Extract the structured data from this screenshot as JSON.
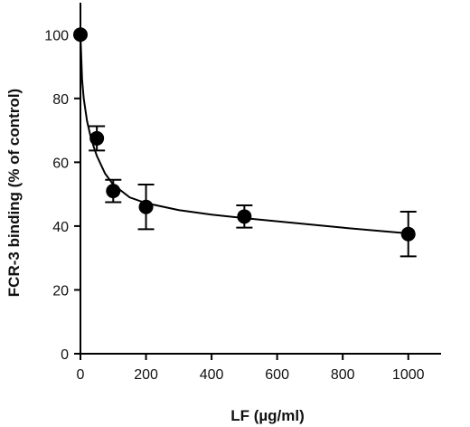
{
  "chart_data": {
    "type": "scatter",
    "title": "",
    "xlabel": "LF (µg/ml)",
    "ylabel": "FCR-3 binding (% of control)",
    "xlim": [
      0,
      1100
    ],
    "ylim": [
      0,
      110
    ],
    "xticks": [
      0,
      200,
      400,
      600,
      800,
      1000
    ],
    "yticks": [
      0,
      20,
      40,
      60,
      80,
      100
    ],
    "xtick_labels": [
      "0",
      "200",
      "400",
      "600",
      "800",
      "1000"
    ],
    "ytick_labels": [
      "0",
      "20",
      "40",
      "60",
      "80",
      "100"
    ],
    "grid": false,
    "legend": "none",
    "series": [
      {
        "x": [
          0,
          50,
          100,
          200,
          500,
          1000
        ],
        "y": [
          100,
          67.5,
          51,
          46,
          43,
          37.5
        ],
        "error": [
          0,
          3.8,
          3.5,
          7,
          3.5,
          7
        ]
      }
    ],
    "fit_curve": {
      "x": [
        0,
        5,
        10,
        20,
        30,
        40,
        50,
        75,
        100,
        150,
        200,
        300,
        400,
        500,
        600,
        700,
        800,
        900,
        1000
      ],
      "y": [
        100,
        86,
        80,
        73,
        68.5,
        65,
        62,
        56.5,
        53,
        49,
        47.2,
        45,
        43.6,
        42.5,
        41.5,
        40.5,
        39.5,
        38.6,
        37.7
      ]
    },
    "colors": {
      "marker": "#000000",
      "line": "#000000",
      "axis": "#000000"
    }
  }
}
